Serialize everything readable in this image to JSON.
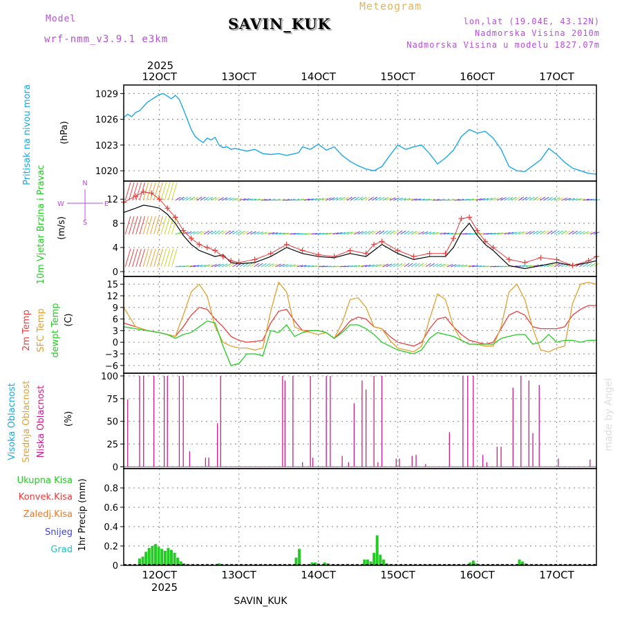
{
  "header": {
    "model_label": "Model",
    "model_name": "wrf-nmm_v3.9.1 e3km",
    "station": "SAVIN_KUK",
    "product": "Meteogram",
    "coords": "lon,lat (19.04E, 43.12N)",
    "elevation": "Nadmorska Visina 2010m",
    "model_elevation": "Nadmorska Visina u modelu 1827.07m"
  },
  "footer": {
    "station": "SAVIN_KUK",
    "credit": "made by Angel"
  },
  "colors": {
    "pressure": "#1ba7e6",
    "speed": "#000000",
    "gust": "#e83b3b",
    "temp2m": "#e84040",
    "tsfc": "#e0a030",
    "dewpt": "#22cc22",
    "cloud_high": "#1ba7e6",
    "cloud_mid": "#e0a030",
    "cloud_low": "#cc1a8a",
    "precip_total": "#22cc22",
    "precip_conv": "#e83b3b",
    "precip_frozen": "#f07820",
    "snow": "#4040e0",
    "graupel": "#20c0c0",
    "header_purple": "#b44fd6",
    "header_orange": "#e6b550"
  },
  "time_axis": {
    "year": "2025",
    "start_day": 11.55,
    "end_day": 17.5,
    "ticks": [
      {
        "day": 12,
        "label": "12OCT"
      },
      {
        "day": 13,
        "label": "13OCT"
      },
      {
        "day": 14,
        "label": "14OCT"
      },
      {
        "day": 15,
        "label": "15OCT"
      },
      {
        "day": 16,
        "label": "16OCT"
      },
      {
        "day": 17,
        "label": "17OCT"
      }
    ]
  },
  "chart_data": [
    {
      "type": "line",
      "id": "pressure",
      "title": "Pritisak na nivou mora",
      "ylabel": "(hPa)",
      "ylim": [
        1018.8,
        1030.0
      ],
      "yticks": [
        1020,
        1023,
        1026,
        1029
      ],
      "series": [
        {
          "name": "Pritisak na nivou mora",
          "x": [
            11.55,
            11.6,
            11.65,
            11.7,
            11.75,
            11.8,
            11.85,
            11.9,
            11.95,
            12.0,
            12.05,
            12.1,
            12.15,
            12.2,
            12.25,
            12.3,
            12.35,
            12.4,
            12.45,
            12.5,
            12.55,
            12.6,
            12.65,
            12.7,
            12.75,
            12.8,
            12.85,
            12.9,
            12.95,
            13.0,
            13.1,
            13.2,
            13.3,
            13.4,
            13.5,
            13.6,
            13.7,
            13.75,
            13.8,
            13.9,
            14.0,
            14.1,
            14.2,
            14.3,
            14.4,
            14.5,
            14.6,
            14.7,
            14.8,
            14.9,
            15.0,
            15.1,
            15.2,
            15.3,
            15.4,
            15.5,
            15.6,
            15.7,
            15.8,
            15.9,
            16.0,
            16.1,
            16.2,
            16.3,
            16.4,
            16.5,
            16.6,
            16.7,
            16.8,
            16.9,
            17.0,
            17.1,
            17.2,
            17.3,
            17.4,
            17.5
          ],
          "values": [
            1026.2,
            1026.6,
            1026.3,
            1026.8,
            1027.0,
            1027.5,
            1028.0,
            1028.3,
            1028.6,
            1028.9,
            1029.0,
            1028.7,
            1028.4,
            1028.8,
            1028.3,
            1027.2,
            1026.0,
            1024.8,
            1024.0,
            1023.6,
            1023.3,
            1023.8,
            1023.6,
            1023.9,
            1023.0,
            1022.7,
            1022.8,
            1022.5,
            1022.6,
            1022.5,
            1022.3,
            1022.5,
            1022.0,
            1021.9,
            1022.0,
            1021.8,
            1022.0,
            1022.1,
            1022.8,
            1022.5,
            1023.1,
            1022.4,
            1022.8,
            1021.8,
            1021.1,
            1020.6,
            1020.2,
            1020.0,
            1020.5,
            1021.8,
            1023.0,
            1022.5,
            1022.8,
            1023.0,
            1022.0,
            1020.8,
            1021.5,
            1022.4,
            1024.0,
            1024.8,
            1024.4,
            1024.6,
            1023.8,
            1022.5,
            1020.5,
            1020.0,
            1019.9,
            1020.6,
            1021.3,
            1022.6,
            1021.9,
            1021.0,
            1020.3,
            1020.0,
            1019.7,
            1019.6
          ]
        }
      ]
    },
    {
      "type": "line",
      "id": "wind",
      "title": "10m Vjetar Brzina i Pravac",
      "ylabel": "(m/s)",
      "ylim": [
        -0.8,
        15.0
      ],
      "yticks": [
        0,
        4,
        8,
        12
      ],
      "legend_compass": {
        "n": "N",
        "s": "S",
        "e": "E",
        "w": "W"
      },
      "series": [
        {
          "name": "speed",
          "x": [
            11.55,
            11.7,
            11.8,
            11.9,
            12.0,
            12.1,
            12.2,
            12.3,
            12.4,
            12.5,
            12.6,
            12.7,
            12.8,
            12.9,
            13.0,
            13.2,
            13.4,
            13.6,
            13.8,
            14.0,
            14.2,
            14.4,
            14.6,
            14.7,
            14.8,
            15.0,
            15.2,
            15.4,
            15.6,
            15.7,
            15.8,
            15.9,
            16.0,
            16.1,
            16.2,
            16.4,
            16.6,
            16.8,
            17.0,
            17.2,
            17.4,
            17.5
          ],
          "values": [
            9.8,
            10.5,
            11.0,
            10.8,
            10.5,
            9.5,
            8.0,
            6.0,
            4.5,
            3.5,
            3.0,
            2.5,
            2.8,
            1.5,
            1.3,
            1.5,
            2.5,
            4.0,
            3.0,
            2.5,
            2.3,
            3.0,
            2.5,
            3.5,
            4.5,
            3.0,
            2.0,
            2.5,
            2.5,
            4.0,
            6.5,
            8.0,
            6.0,
            4.5,
            3.5,
            1.0,
            0.5,
            1.0,
            1.5,
            1.0,
            1.5,
            1.8
          ]
        },
        {
          "name": "gust",
          "x": [
            11.55,
            11.7,
            11.8,
            11.9,
            12.0,
            12.1,
            12.2,
            12.3,
            12.4,
            12.5,
            12.6,
            12.7,
            12.8,
            12.9,
            13.0,
            13.2,
            13.4,
            13.6,
            13.8,
            14.0,
            14.2,
            14.4,
            14.6,
            14.7,
            14.8,
            15.0,
            15.2,
            15.4,
            15.6,
            15.7,
            15.8,
            15.9,
            16.0,
            16.1,
            16.2,
            16.4,
            16.6,
            16.8,
            17.0,
            17.2,
            17.4,
            17.5
          ],
          "values": [
            11.5,
            12.5,
            13.2,
            13.0,
            12.0,
            10.5,
            9.0,
            6.8,
            5.5,
            4.5,
            4.0,
            3.5,
            2.5,
            1.8,
            1.5,
            2.0,
            3.0,
            4.5,
            3.5,
            2.8,
            2.5,
            3.5,
            3.0,
            4.5,
            5.0,
            3.5,
            2.5,
            3.0,
            3.0,
            5.5,
            8.8,
            9.0,
            6.8,
            5.0,
            4.0,
            2.0,
            1.5,
            2.3,
            2.0,
            1.0,
            1.8,
            2.5
          ]
        }
      ]
    },
    {
      "type": "line",
      "id": "temperature",
      "titles": [
        "2m Temp",
        "SFC Temp",
        "dewpt Temp"
      ],
      "ylabel": "(C)",
      "ylim": [
        -8.0,
        17.0
      ],
      "yticks": [
        -6,
        -3,
        0,
        3,
        6,
        9,
        12,
        15
      ],
      "series": [
        {
          "name": "2m Temp",
          "x": [
            11.55,
            11.7,
            11.85,
            12.0,
            12.1,
            12.2,
            12.3,
            12.4,
            12.5,
            12.6,
            12.7,
            12.8,
            12.9,
            13.0,
            13.1,
            13.2,
            13.3,
            13.4,
            13.5,
            13.6,
            13.7,
            13.8,
            13.9,
            14.0,
            14.1,
            14.2,
            14.3,
            14.4,
            14.5,
            14.6,
            14.7,
            14.8,
            14.9,
            15.0,
            15.1,
            15.2,
            15.3,
            15.4,
            15.5,
            15.6,
            15.7,
            15.8,
            15.9,
            16.0,
            16.1,
            16.2,
            16.3,
            16.4,
            16.5,
            16.6,
            16.7,
            16.8,
            16.9,
            17.0,
            17.1,
            17.2,
            17.3,
            17.4,
            17.5
          ],
          "values": [
            5.0,
            4.0,
            3.0,
            2.5,
            2.0,
            1.5,
            4.0,
            7.0,
            9.0,
            8.5,
            6.0,
            4.0,
            1.5,
            0.5,
            0.0,
            0.2,
            0.5,
            5.0,
            8.0,
            8.5,
            5.5,
            3.0,
            3.0,
            3.0,
            2.5,
            1.0,
            3.0,
            5.5,
            6.5,
            6.0,
            4.0,
            3.5,
            1.5,
            0.0,
            -0.5,
            -1.0,
            0.0,
            3.5,
            6.0,
            6.5,
            4.0,
            2.0,
            0.5,
            0.0,
            -0.5,
            0.0,
            3.5,
            7.0,
            8.0,
            7.0,
            4.0,
            3.5,
            3.5,
            3.5,
            4.0,
            7.0,
            8.5,
            9.5,
            9.5
          ]
        },
        {
          "name": "SFC Temp",
          "x": [
            11.55,
            11.7,
            11.85,
            12.0,
            12.1,
            12.2,
            12.3,
            12.4,
            12.5,
            12.6,
            12.7,
            12.8,
            12.9,
            13.0,
            13.1,
            13.2,
            13.3,
            13.4,
            13.5,
            13.6,
            13.7,
            13.8,
            13.9,
            14.0,
            14.1,
            14.2,
            14.3,
            14.4,
            14.5,
            14.6,
            14.7,
            14.8,
            14.9,
            15.0,
            15.1,
            15.2,
            15.3,
            15.4,
            15.5,
            15.6,
            15.7,
            15.8,
            15.9,
            16.0,
            16.1,
            16.2,
            16.3,
            16.4,
            16.5,
            16.6,
            16.7,
            16.8,
            16.9,
            17.0,
            17.1,
            17.2,
            17.3,
            17.4,
            17.5
          ],
          "values": [
            9.0,
            4.0,
            3.0,
            2.5,
            2.0,
            1.5,
            7.0,
            13.0,
            15.0,
            12.0,
            4.0,
            0.0,
            -1.0,
            -1.5,
            -1.5,
            -2.0,
            -1.5,
            8.0,
            15.5,
            13.0,
            4.0,
            3.0,
            2.5,
            2.0,
            2.5,
            1.0,
            5.0,
            11.0,
            11.5,
            9.0,
            4.0,
            3.5,
            0.5,
            -1.5,
            -2.0,
            -2.5,
            -1.0,
            6.0,
            12.5,
            11.0,
            4.0,
            0.5,
            -0.5,
            -0.5,
            -1.0,
            -1.0,
            4.0,
            13.0,
            15.0,
            11.0,
            3.5,
            -2.0,
            -2.5,
            -1.5,
            -1.0,
            10.0,
            15.0,
            15.5,
            15.0
          ]
        },
        {
          "name": "dewpt Temp",
          "x": [
            11.55,
            11.7,
            11.85,
            12.0,
            12.1,
            12.2,
            12.3,
            12.4,
            12.5,
            12.6,
            12.7,
            12.8,
            12.9,
            13.0,
            13.1,
            13.2,
            13.3,
            13.4,
            13.5,
            13.6,
            13.7,
            13.8,
            13.9,
            14.0,
            14.1,
            14.2,
            14.3,
            14.4,
            14.5,
            14.6,
            14.7,
            14.8,
            14.9,
            15.0,
            15.1,
            15.2,
            15.3,
            15.4,
            15.5,
            15.6,
            15.7,
            15.8,
            15.9,
            16.0,
            16.1,
            16.2,
            16.3,
            16.4,
            16.5,
            16.6,
            16.7,
            16.8,
            16.9,
            17.0,
            17.1,
            17.2,
            17.3,
            17.4,
            17.5
          ],
          "values": [
            4.0,
            3.5,
            3.0,
            2.5,
            2.0,
            1.0,
            2.0,
            2.5,
            4.0,
            5.5,
            5.0,
            -1.0,
            -6.0,
            -5.5,
            -3.0,
            -3.0,
            -3.5,
            3.0,
            2.5,
            4.5,
            1.5,
            2.5,
            3.0,
            3.0,
            2.5,
            1.0,
            2.5,
            4.5,
            4.5,
            3.5,
            2.0,
            0.0,
            -1.0,
            -2.0,
            -2.5,
            -3.0,
            -2.0,
            1.0,
            2.5,
            2.0,
            1.5,
            0.5,
            -0.5,
            -0.5,
            -0.5,
            -0.5,
            1.0,
            1.5,
            2.0,
            2.0,
            -0.5,
            0.0,
            2.0,
            0.0,
            0.5,
            0.5,
            0.0,
            0.5,
            0.5
          ]
        }
      ]
    },
    {
      "type": "bar",
      "id": "clouds",
      "titles": [
        "Visoka Oblacnost",
        "Srednja Oblacnost",
        "Niska Oblacnost"
      ],
      "ylabel": "(%)",
      "ylim": [
        -2,
        103
      ],
      "yticks": [
        0,
        25,
        50,
        75,
        100
      ],
      "series": [
        {
          "name": "Niska Oblacnost",
          "x": [
            11.6,
            11.75,
            11.8,
            11.93,
            12.06,
            12.1,
            12.25,
            12.3,
            12.38,
            12.58,
            12.62,
            12.73,
            12.77,
            13.55,
            13.58,
            13.68,
            13.8,
            13.9,
            13.93,
            14.1,
            14.15,
            14.3,
            14.38,
            14.45,
            14.55,
            14.6,
            14.7,
            14.75,
            14.8,
            14.98,
            15.02,
            15.18,
            15.23,
            15.35,
            15.65,
            15.82,
            15.88,
            15.95,
            16.07,
            16.12,
            16.25,
            16.3,
            16.45,
            16.55,
            16.65,
            16.7,
            16.78,
            17.02,
            17.42
          ],
          "values": [
            74,
            100,
            100,
            100,
            100,
            100,
            100,
            100,
            17,
            10,
            10,
            48,
            100,
            100,
            95,
            100,
            5,
            100,
            10,
            100,
            100,
            12,
            5,
            70,
            95,
            85,
            100,
            5,
            100,
            9,
            9,
            12,
            13,
            3,
            38,
            100,
            100,
            100,
            13,
            5,
            22,
            22,
            87,
            100,
            95,
            37,
            90,
            9,
            8
          ]
        }
      ]
    },
    {
      "type": "bar",
      "id": "precip",
      "titles": [
        "Ukupna Kisa",
        "Konvek.Kisa",
        "Zaledj.Kisa",
        "Snijeg",
        "Grad"
      ],
      "ylabel": "1hr Precip (mm)",
      "ylim": [
        0,
        1.0
      ],
      "yticks": [
        0,
        0.2,
        0.4,
        0.6,
        0.8
      ],
      "series": [
        {
          "name": "Ukupna Kisa",
          "x": [
            11.75,
            11.79,
            11.83,
            11.87,
            11.91,
            11.95,
            11.99,
            12.03,
            12.07,
            12.11,
            12.15,
            12.19,
            12.23,
            12.27,
            12.31,
            12.75,
            13.72,
            13.76,
            13.92,
            13.96,
            14.0,
            14.08,
            14.12,
            14.58,
            14.62,
            14.66,
            14.7,
            14.74,
            14.78,
            14.82,
            14.86,
            14.9,
            15.91,
            15.95,
            15.99,
            16.53,
            16.57,
            16.61
          ],
          "values": [
            0.07,
            0.09,
            0.14,
            0.18,
            0.2,
            0.22,
            0.19,
            0.17,
            0.15,
            0.18,
            0.16,
            0.13,
            0.08,
            0.04,
            0.02,
            0.02,
            0.08,
            0.17,
            0.03,
            0.03,
            0.02,
            0.03,
            0.02,
            0.06,
            0.06,
            0.04,
            0.13,
            0.31,
            0.11,
            0.06,
            0.02,
            0.01,
            0.03,
            0.05,
            0.02,
            0.06,
            0.04,
            0.02
          ]
        }
      ]
    }
  ]
}
